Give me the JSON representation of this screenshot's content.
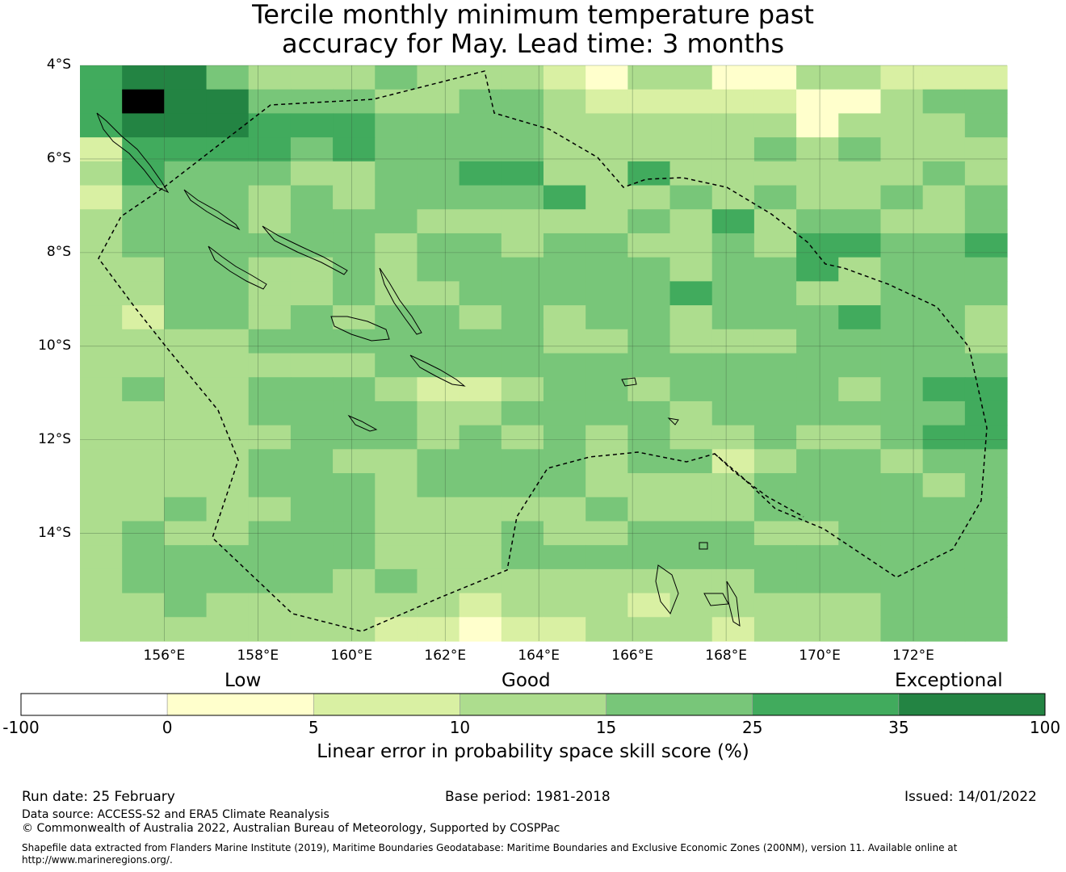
{
  "title": {
    "line1": "Tercile monthly minimum temperature past",
    "line2": "accuracy for May. Lead time: 3 months"
  },
  "map": {
    "lat_labels": [
      "4°S",
      "6°S",
      "8°S",
      "10°S",
      "12°S",
      "14°S"
    ],
    "lon_labels": [
      "156°E",
      "158°E",
      "160°E",
      "162°E",
      "164°E",
      "166°E",
      "168°E",
      "170°E",
      "172°E"
    ],
    "lat_values": [
      -4,
      -6,
      -8,
      -10,
      -12,
      -14
    ],
    "lon_values": [
      156,
      158,
      160,
      162,
      164,
      166,
      168,
      170,
      172
    ],
    "extent": {
      "lon_min": 154.2,
      "lon_max": 174.0,
      "lat_max": -4.0,
      "lat_min": -16.3
    },
    "grid": {
      "cell_deg": 0.825,
      "rows": [
        "5664333433321331133222",
        "5766444334432222211344",
        "5666555444433333313334",
        "2555545444433333434333",
        "3544433445533533333343",
        "2444343444453343433434",
        "3444344433333435344334",
        "3444444344344334355445",
        "3344334344444434453444",
        "3344334334444454433444",
        "3244343443434434445443",
        "3333444444433433344443",
        "3333333444444444444444",
        "3433444322344344443455",
        "3333444433444434444445",
        "3333344434343433433455",
        "3333443344443442344344",
        "3333444344443333444434",
        "3343344333334333444444",
        "3433444333433444334444",
        "3444444333444444444444",
        "3444443433333333444444",
        "3343333332333233333444",
        "3333333221223332333444"
      ]
    },
    "colors": [
      "#ffffff",
      "#ffffcc",
      "#d9f0a3",
      "#addd8e",
      "#78c679",
      "#41ab5d",
      "#238443"
    ]
  },
  "colorbar": {
    "categories": [
      "Low",
      "Good",
      "Exceptional"
    ],
    "ticks": [
      "-100",
      "0",
      "5",
      "10",
      "15",
      "25",
      "35",
      "100"
    ],
    "colors": [
      "#ffffff",
      "#ffffcc",
      "#d9f0a3",
      "#addd8e",
      "#78c679",
      "#41ab5d",
      "#238443"
    ],
    "label": "Linear error in probability space skill score (%)"
  },
  "footer": {
    "run_date": "Run date: 25 February",
    "base_period": "Base period: 1981-2018",
    "issued": "Issued: 14/01/2022",
    "data_source": "Data source: ACCESS-S2 and ERA5 Climate Reanalysis",
    "copyright": "© Commonwealth of Australia 2022, Australian Bureau of Meteorology, Supported by COSPPac",
    "shapefile_line1": "Shapefile data extracted from Flanders Marine Institute (2019), Maritime Boundaries Geodatabase: Maritime Boundaries and Exclusive Economic Zones (200NM), version 11. Available online at",
    "shapefile_line2": "http://www.marineregions.org/."
  }
}
